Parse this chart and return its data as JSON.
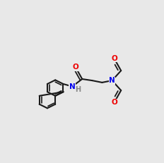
{
  "bg_color": "#e8e8e8",
  "bond_color": "#1a1a1a",
  "N_color": "#0000ee",
  "O_color": "#ee0000",
  "H_color": "#888888",
  "lw": 1.5,
  "dlw": 1.3
}
